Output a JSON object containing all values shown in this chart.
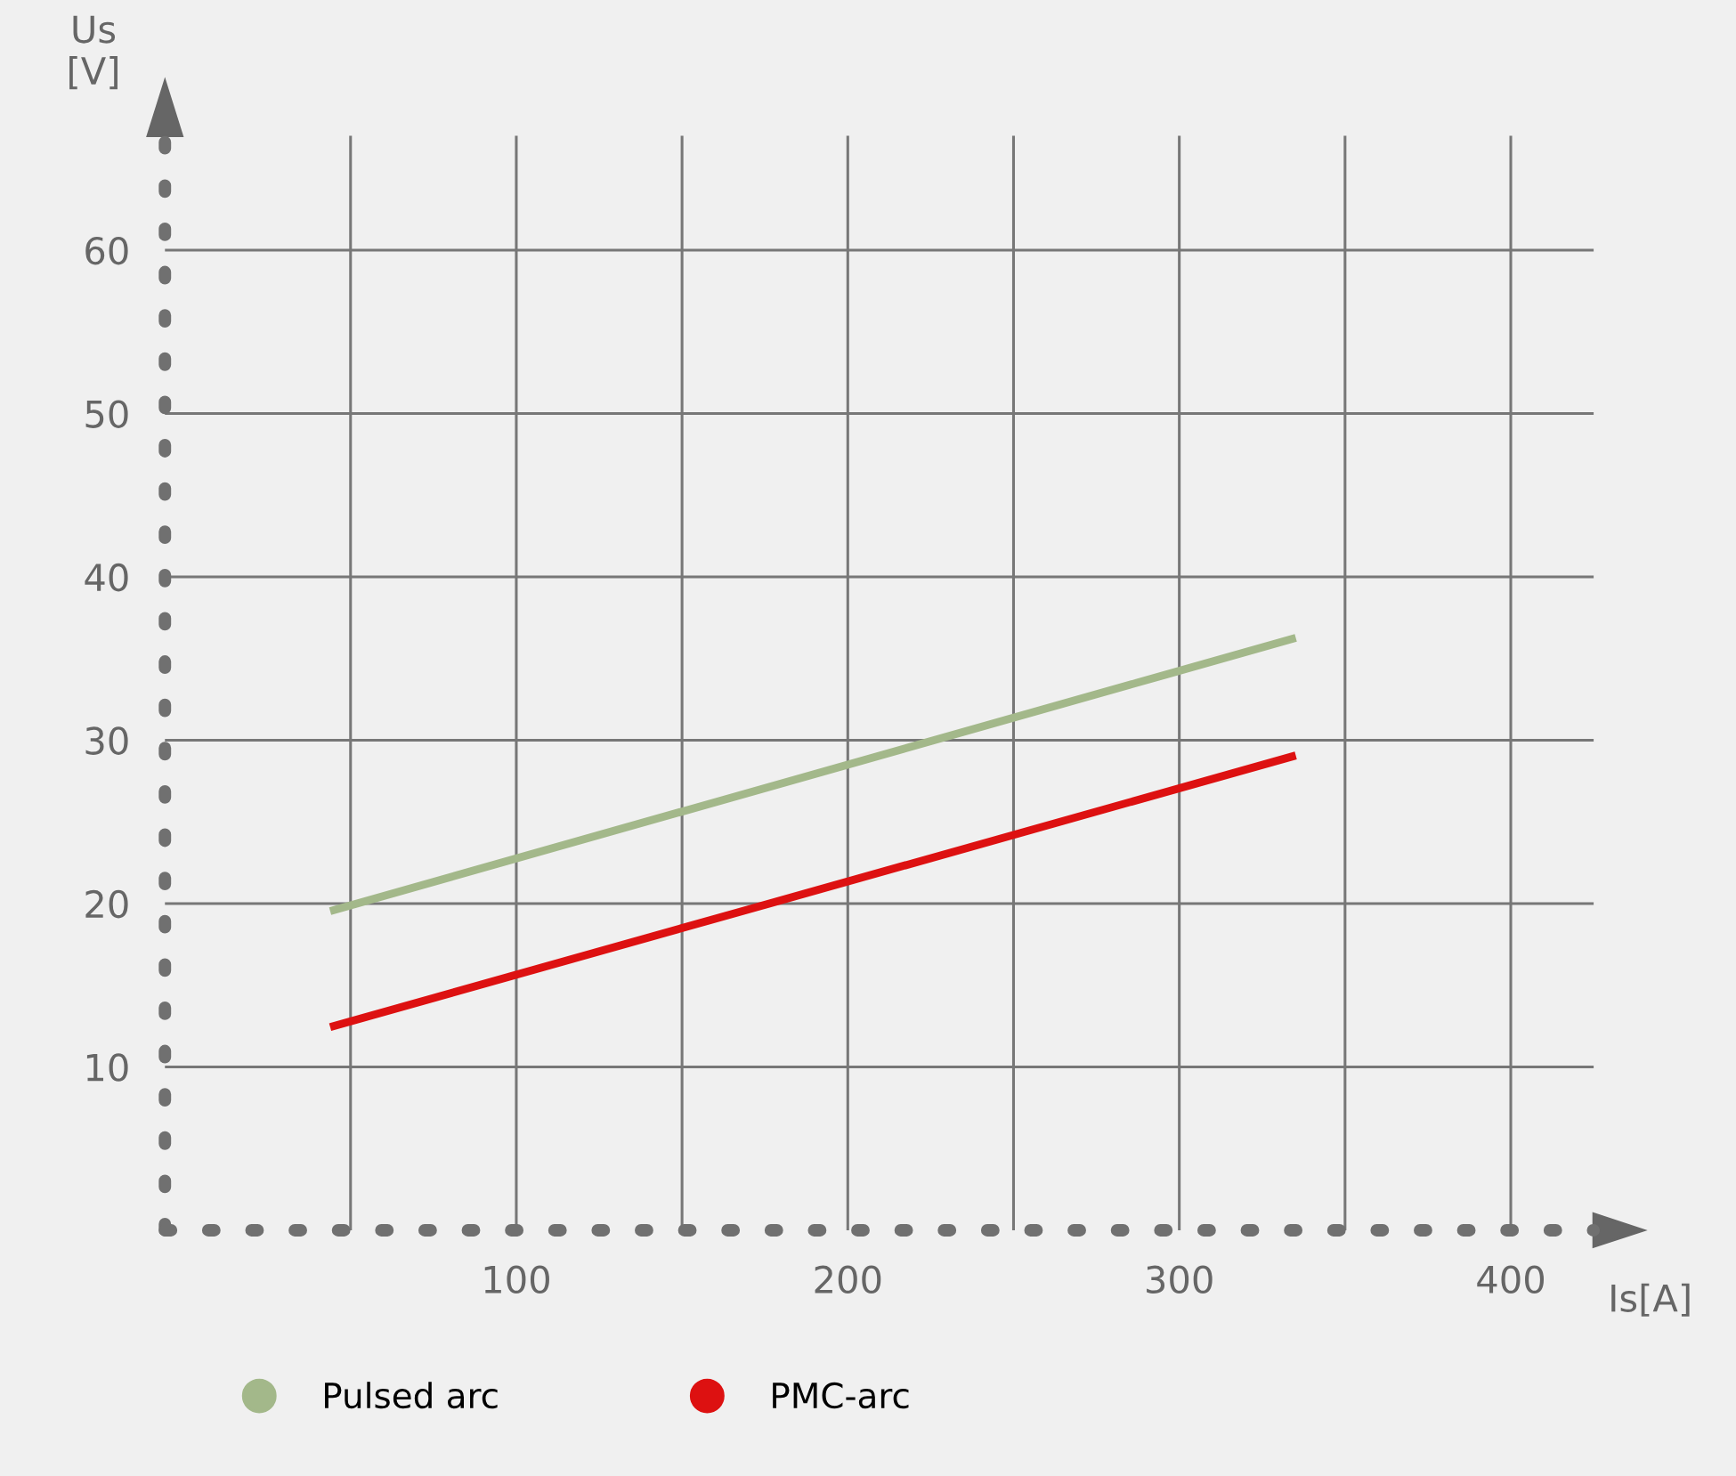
{
  "chart_data": {
    "type": "line",
    "xlabel": "Is[A]",
    "ylabel": "Us\n[V]",
    "x": [
      45,
      334
    ],
    "series": [
      {
        "name": "Pulsed arc",
        "color": "#a3b88a",
        "values": [
          19.6,
          36.2
        ]
      },
      {
        "name": "PMC-arc",
        "color": "#dd1111",
        "values": [
          12.5,
          29.0
        ]
      }
    ],
    "xlim": [
      -6,
      425
    ],
    "ylim": [
      0,
      67
    ],
    "xticks": [
      {
        "value": 50,
        "label": null
      },
      100,
      {
        "value": 150,
        "label": null
      },
      200,
      {
        "value": 250,
        "label": null
      },
      300,
      {
        "value": 350,
        "label": null
      },
      400
    ],
    "yticks": [
      10,
      20,
      30,
      40,
      50,
      60
    ],
    "grid": true,
    "legend": "bottom",
    "marker": "none",
    "line_style": "solid"
  }
}
